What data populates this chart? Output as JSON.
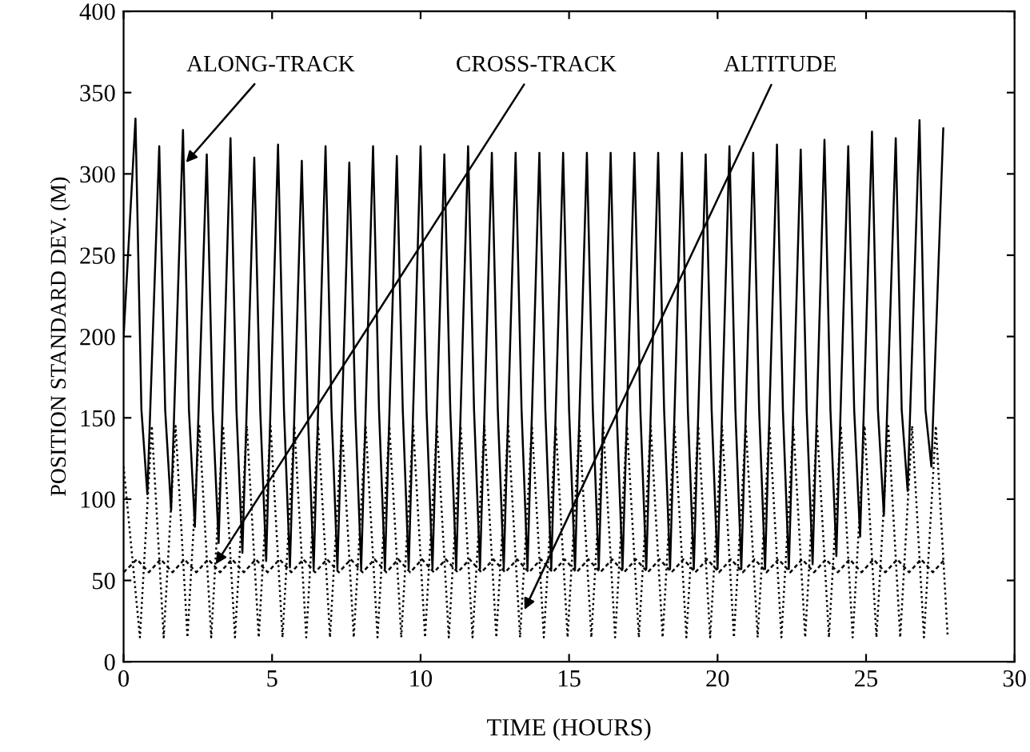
{
  "chart_data": {
    "type": "line",
    "xlabel": "TIME (HOURS)",
    "ylabel": "POSITION STANDARD DEV. (M)",
    "xlim": [
      0,
      30
    ],
    "ylim": [
      0,
      400
    ],
    "xticks": [
      0,
      5,
      10,
      15,
      20,
      25,
      30
    ],
    "yticks": [
      0,
      50,
      100,
      150,
      200,
      250,
      300,
      350,
      400
    ],
    "grid": false,
    "legend": false,
    "marker": "none",
    "annotations": [
      {
        "text": "ALONG-TRACK",
        "x": 2.1,
        "y": 307
      },
      {
        "text": "CROSS-TRACK",
        "x": 3.1,
        "y": 60
      },
      {
        "text": "ALTITUDE",
        "x": 13.5,
        "y": 32
      }
    ],
    "series": [
      {
        "color": "#000000",
        "line_style": "solid",
        "x": [
          0,
          0.4,
          0.6,
          0.8,
          1.2,
          1.4,
          1.6,
          2.0,
          2.2,
          2.4,
          2.8,
          3.0,
          3.2,
          3.6,
          3.8,
          4.0,
          4.4,
          4.6,
          4.8,
          5.2,
          5.4,
          5.6,
          6.0,
          6.2,
          6.4,
          6.8,
          7.0,
          7.2,
          7.6,
          7.8,
          8.0,
          8.4,
          8.6,
          8.8,
          9.2,
          9.4,
          9.6,
          10.0,
          10.2,
          10.4,
          10.8,
          11.0,
          11.2,
          11.6,
          11.8,
          12.0,
          12.4,
          12.6,
          12.8,
          13.2,
          13.4,
          13.6,
          14.0,
          14.2,
          14.4,
          14.8,
          15.0,
          15.2,
          15.6,
          15.8,
          16.0,
          16.4,
          16.6,
          16.8,
          17.2,
          17.4,
          17.6,
          18.0,
          18.2,
          18.4,
          18.8,
          19.0,
          19.2,
          19.6,
          19.8,
          20.0,
          20.4,
          20.6,
          20.8,
          21.2,
          21.4,
          21.6,
          22.0,
          22.2,
          22.4,
          22.8,
          23.0,
          23.2,
          23.6,
          23.8,
          24.0,
          24.4,
          24.6,
          24.8,
          25.2,
          25.4,
          25.6,
          26.0,
          26.2,
          26.4,
          26.8,
          27.0,
          27.2,
          27.6
        ],
        "values": [
          200,
          334,
          155,
          103,
          317,
          155,
          93,
          327,
          155,
          83,
          312,
          155,
          73,
          322,
          155,
          67,
          310,
          155,
          62,
          318,
          155,
          58,
          308,
          155,
          57,
          317,
          155,
          57,
          307,
          155,
          57,
          317,
          155,
          57,
          311,
          155,
          57,
          317,
          155,
          57,
          312,
          155,
          57,
          317,
          155,
          57,
          313,
          155,
          57,
          313,
          155,
          57,
          313,
          155,
          57,
          313,
          155,
          57,
          313,
          155,
          57,
          313,
          155,
          57,
          313,
          155,
          57,
          313,
          155,
          57,
          313,
          155,
          57,
          312,
          155,
          57,
          317,
          155,
          57,
          313,
          155,
          57,
          318,
          155,
          57,
          315,
          155,
          60,
          321,
          155,
          65,
          317,
          155,
          77,
          326,
          155,
          90,
          322,
          155,
          105,
          333,
          155,
          120,
          328
        ]
      },
      {
        "color": "#000000",
        "line_style": "dashed",
        "x": [
          0,
          0.45,
          0.85,
          1.25,
          1.65,
          2.05,
          2.45,
          2.85,
          3.25,
          3.65,
          4.05,
          4.45,
          4.85,
          5.25,
          5.65,
          6.05,
          6.45,
          6.85,
          7.25,
          7.65,
          8.05,
          8.45,
          8.85,
          9.25,
          9.65,
          10.05,
          10.45,
          10.85,
          11.25,
          11.65,
          12.05,
          12.45,
          12.85,
          13.25,
          13.65,
          14.05,
          14.45,
          14.85,
          15.25,
          15.65,
          16.05,
          16.45,
          16.85,
          17.25,
          17.65,
          18.05,
          18.45,
          18.85,
          19.25,
          19.65,
          20.05,
          20.45,
          20.85,
          21.25,
          21.65,
          22.05,
          22.45,
          22.85,
          23.25,
          23.65,
          24.05,
          24.45,
          24.85,
          25.25,
          25.65,
          26.05,
          26.45,
          26.85,
          27.25,
          27.65
        ],
        "values": [
          55,
          63,
          55,
          63,
          55,
          63,
          55,
          63,
          55,
          63,
          55,
          63,
          55,
          63,
          55,
          63,
          55,
          63,
          55,
          63,
          55,
          63,
          55,
          63,
          55,
          63,
          55,
          63,
          55,
          63,
          55,
          63,
          55,
          63,
          55,
          63,
          55,
          63,
          55,
          63,
          55,
          63,
          55,
          63,
          55,
          63,
          55,
          63,
          55,
          63,
          55,
          63,
          55,
          63,
          55,
          63,
          55,
          63,
          55,
          63,
          55,
          63,
          55,
          63,
          55,
          63,
          55,
          63,
          55,
          63
        ]
      },
      {
        "color": "#000000",
        "line_style": "dotted",
        "x": [
          0,
          0.55,
          0.95,
          1.35,
          1.75,
          2.15,
          2.55,
          2.95,
          3.35,
          3.75,
          4.15,
          4.55,
          4.95,
          5.35,
          5.75,
          6.15,
          6.55,
          6.95,
          7.35,
          7.75,
          8.15,
          8.55,
          8.95,
          9.35,
          9.75,
          10.15,
          10.55,
          10.95,
          11.35,
          11.75,
          12.15,
          12.55,
          12.95,
          13.35,
          13.75,
          14.15,
          14.55,
          14.95,
          15.35,
          15.75,
          16.15,
          16.55,
          16.95,
          17.35,
          17.75,
          18.15,
          18.55,
          18.95,
          19.35,
          19.75,
          20.15,
          20.55,
          20.95,
          21.35,
          21.75,
          22.15,
          22.55,
          22.95,
          23.35,
          23.75,
          24.15,
          24.55,
          24.95,
          25.35,
          25.75,
          26.15,
          26.55,
          26.95,
          27.35,
          27.75
        ],
        "values": [
          120,
          15,
          145,
          15,
          145,
          15,
          145,
          15,
          145,
          15,
          145,
          15,
          145,
          15,
          145,
          15,
          145,
          15,
          145,
          15,
          145,
          15,
          145,
          15,
          145,
          15,
          145,
          15,
          145,
          15,
          145,
          15,
          145,
          15,
          145,
          15,
          145,
          15,
          145,
          15,
          145,
          15,
          145,
          15,
          145,
          15,
          145,
          15,
          145,
          15,
          145,
          15,
          145,
          15,
          145,
          15,
          145,
          15,
          145,
          15,
          145,
          15,
          145,
          15,
          145,
          15,
          145,
          15,
          145,
          15
        ]
      }
    ]
  }
}
